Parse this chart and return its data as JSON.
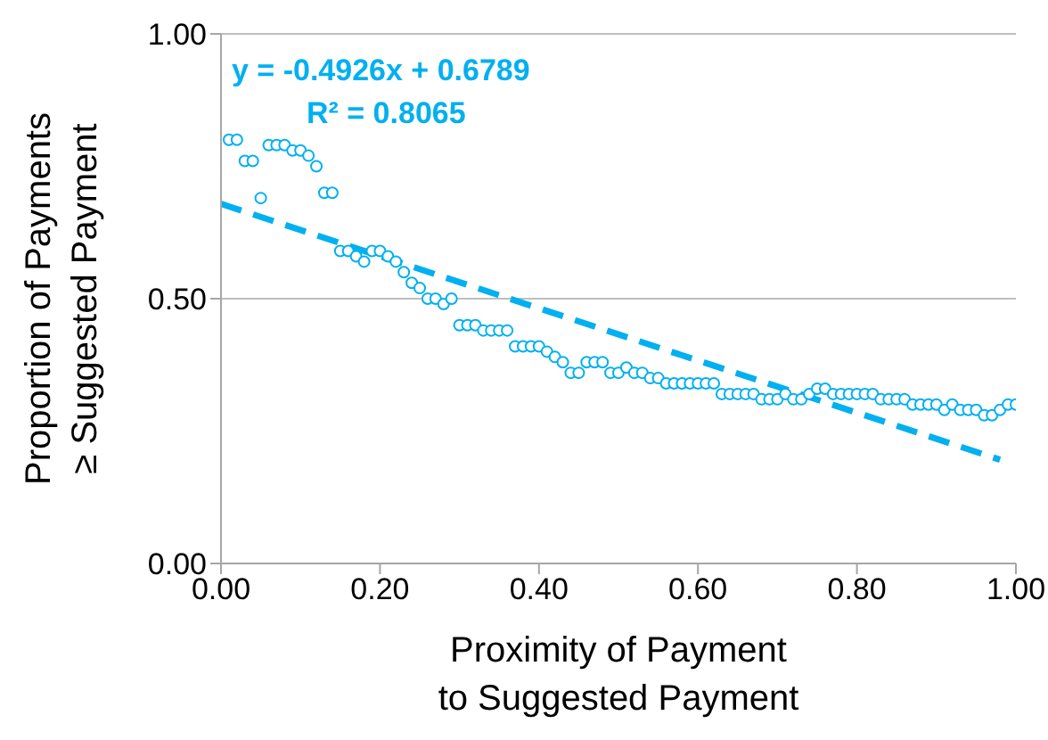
{
  "chart_data": {
    "type": "scatter",
    "xlabel": "Proximity of Payment\nto Suggested Payment",
    "ylabel": "Proportion of Payments\n≥ Suggested Payment",
    "annotations": [
      "y = -0.4926x + 0.6789",
      "R² = 0.8065"
    ],
    "xlim": [
      0,
      1
    ],
    "xticks": [
      {
        "value": 0,
        "label": "0.00"
      },
      {
        "value": 0.2,
        "label": "0.20"
      },
      {
        "value": 0.4,
        "label": "0.40"
      },
      {
        "value": 0.6,
        "label": "0.60"
      },
      {
        "value": 0.8,
        "label": "0.80"
      },
      {
        "value": 1,
        "label": "1.00"
      }
    ],
    "ylim": [
      0,
      1
    ],
    "yticks": [
      {
        "value": 0,
        "label": "0.00"
      },
      {
        "value": 0.5,
        "label": "0.50"
      },
      {
        "value": 1,
        "label": "1.00"
      }
    ],
    "grid": "y",
    "legend": false,
    "series": [
      {
        "marker": "circle",
        "color": "#00b0f0",
        "x": [
          0.01,
          0.02,
          0.03,
          0.04,
          0.05,
          0.06,
          0.07,
          0.08,
          0.09,
          0.1,
          0.11,
          0.12,
          0.13,
          0.14,
          0.15,
          0.16,
          0.17,
          0.18,
          0.19,
          0.2,
          0.21,
          0.22,
          0.23,
          0.24,
          0.25,
          0.26,
          0.27,
          0.28,
          0.29,
          0.3,
          0.31,
          0.32,
          0.33,
          0.34,
          0.35,
          0.36,
          0.37,
          0.38,
          0.39,
          0.4,
          0.41,
          0.42,
          0.43,
          0.44,
          0.45,
          0.46,
          0.47,
          0.48,
          0.49,
          0.5,
          0.51,
          0.52,
          0.53,
          0.54,
          0.55,
          0.56,
          0.57,
          0.58,
          0.59,
          0.6,
          0.61,
          0.62,
          0.63,
          0.64,
          0.65,
          0.66,
          0.67,
          0.68,
          0.69,
          0.7,
          0.71,
          0.72,
          0.73,
          0.74,
          0.75,
          0.76,
          0.77,
          0.78,
          0.79,
          0.8,
          0.81,
          0.82,
          0.83,
          0.84,
          0.85,
          0.86,
          0.87,
          0.88,
          0.89,
          0.9,
          0.91,
          0.92,
          0.93,
          0.94,
          0.95,
          0.96,
          0.97,
          0.98,
          0.99,
          1.0
        ],
        "values": [
          0.8,
          0.8,
          0.76,
          0.76,
          0.69,
          0.79,
          0.79,
          0.79,
          0.78,
          0.78,
          0.77,
          0.75,
          0.7,
          0.7,
          0.59,
          0.59,
          0.58,
          0.57,
          0.59,
          0.59,
          0.58,
          0.57,
          0.55,
          0.53,
          0.52,
          0.5,
          0.5,
          0.49,
          0.5,
          0.45,
          0.45,
          0.45,
          0.44,
          0.44,
          0.44,
          0.44,
          0.41,
          0.41,
          0.41,
          0.41,
          0.4,
          0.39,
          0.38,
          0.36,
          0.36,
          0.38,
          0.38,
          0.38,
          0.36,
          0.36,
          0.37,
          0.36,
          0.36,
          0.35,
          0.35,
          0.34,
          0.34,
          0.34,
          0.34,
          0.34,
          0.34,
          0.34,
          0.32,
          0.32,
          0.32,
          0.32,
          0.32,
          0.31,
          0.31,
          0.31,
          0.32,
          0.31,
          0.31,
          0.32,
          0.33,
          0.33,
          0.32,
          0.32,
          0.32,
          0.32,
          0.32,
          0.32,
          0.31,
          0.31,
          0.31,
          0.31,
          0.3,
          0.3,
          0.3,
          0.3,
          0.29,
          0.3,
          0.29,
          0.29,
          0.29,
          0.28,
          0.28,
          0.29,
          0.3,
          0.3
        ]
      },
      {
        "type": "line",
        "marker": "none",
        "color": "#00b0f0",
        "line_style": "dashed",
        "x": [
          0,
          0.98
        ],
        "values": [
          0.679,
          0.196
        ]
      }
    ]
  }
}
